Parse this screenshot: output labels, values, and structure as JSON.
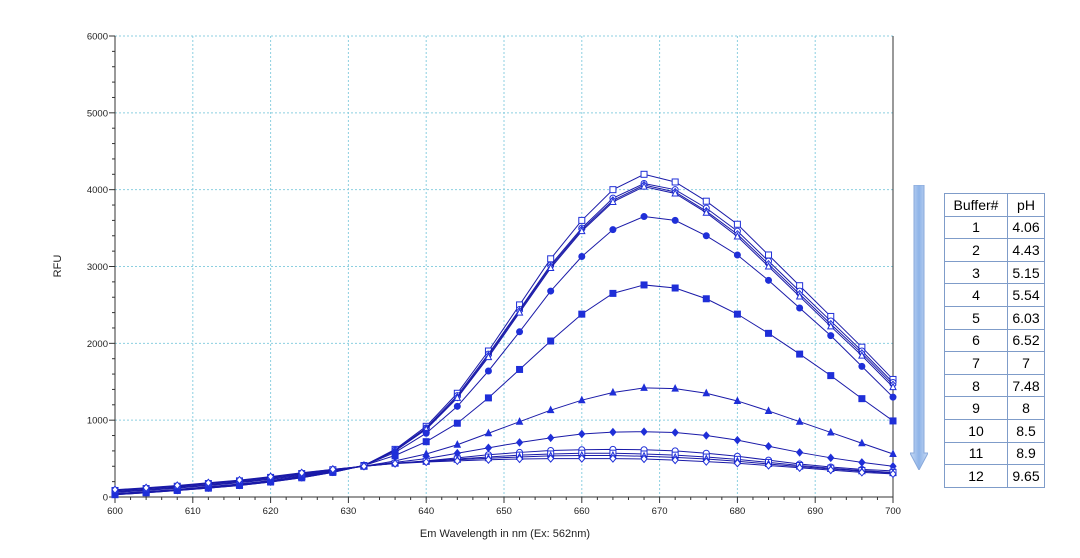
{
  "chart_data": {
    "type": "line",
    "xlabel": "Em Wavelength in nm  (Ex: 562nm)",
    "ylabel": "RFU",
    "xlim": [
      600,
      700
    ],
    "ylim": [
      0,
      6000
    ],
    "xticks": [
      600,
      610,
      620,
      630,
      640,
      650,
      660,
      670,
      680,
      690,
      700
    ],
    "yticks": [
      0,
      1000,
      2000,
      3000,
      4000,
      5000,
      6000
    ],
    "grid": true,
    "line_color": "#1a1aa8",
    "marker_color": "#1f2fd8",
    "grid_color": "#8ccfe0",
    "x": [
      600,
      604,
      608,
      612,
      616,
      620,
      624,
      628,
      632,
      636,
      640,
      644,
      648,
      652,
      656,
      660,
      664,
      668,
      672,
      676,
      680,
      684,
      688,
      692,
      696,
      700
    ],
    "series": [
      {
        "marker": "square-open",
        "values": [
          30,
          55,
          85,
          115,
          150,
          195,
          250,
          320,
          410,
          620,
          920,
          1350,
          1900,
          2500,
          3100,
          3600,
          4000,
          4200,
          4100,
          3850,
          3550,
          3150,
          2750,
          2350,
          1950,
          1530
        ]
      },
      {
        "marker": "circle-open",
        "values": [
          30,
          55,
          85,
          115,
          150,
          195,
          250,
          320,
          410,
          610,
          900,
          1320,
          1860,
          2440,
          3020,
          3500,
          3890,
          4080,
          4000,
          3760,
          3460,
          3070,
          2680,
          2290,
          1900,
          1490
        ]
      },
      {
        "marker": "diamond-open",
        "values": [
          35,
          60,
          90,
          120,
          155,
          200,
          255,
          325,
          410,
          600,
          890,
          1300,
          1840,
          2420,
          3000,
          3480,
          3860,
          4060,
          3970,
          3720,
          3420,
          3030,
          2640,
          2250,
          1870,
          1460
        ]
      },
      {
        "marker": "triangle-open",
        "values": [
          35,
          60,
          90,
          125,
          160,
          205,
          260,
          330,
          410,
          600,
          880,
          1290,
          1820,
          2400,
          2980,
          3460,
          3840,
          4040,
          3950,
          3700,
          3390,
          3000,
          2610,
          2220,
          1840,
          1430
        ]
      },
      {
        "marker": "circle-filled",
        "values": [
          40,
          65,
          95,
          130,
          165,
          210,
          265,
          335,
          410,
          580,
          830,
          1180,
          1640,
          2150,
          2680,
          3130,
          3480,
          3650,
          3600,
          3400,
          3150,
          2820,
          2460,
          2100,
          1700,
          1300
        ]
      },
      {
        "marker": "square-filled",
        "values": [
          45,
          70,
          100,
          135,
          170,
          215,
          270,
          335,
          410,
          540,
          720,
          960,
          1290,
          1660,
          2030,
          2380,
          2650,
          2760,
          2720,
          2580,
          2380,
          2130,
          1860,
          1580,
          1280,
          990
        ]
      },
      {
        "marker": "triangle-filled",
        "values": [
          60,
          85,
          115,
          150,
          185,
          230,
          280,
          340,
          400,
          470,
          560,
          680,
          830,
          980,
          1130,
          1260,
          1360,
          1420,
          1410,
          1350,
          1250,
          1120,
          980,
          840,
          700,
          560
        ]
      },
      {
        "marker": "diamond-filled",
        "values": [
          70,
          95,
          125,
          160,
          195,
          240,
          290,
          345,
          400,
          450,
          500,
          570,
          640,
          710,
          770,
          820,
          845,
          850,
          840,
          800,
          740,
          660,
          580,
          510,
          450,
          400
        ]
      },
      {
        "marker": "circle-open",
        "values": [
          80,
          105,
          135,
          170,
          205,
          250,
          300,
          350,
          400,
          440,
          470,
          510,
          550,
          580,
          605,
          615,
          620,
          615,
          600,
          570,
          530,
          480,
          430,
          390,
          360,
          340
        ]
      },
      {
        "marker": "square-open",
        "values": [
          85,
          110,
          140,
          175,
          210,
          255,
          305,
          355,
          400,
          440,
          465,
          495,
          520,
          545,
          560,
          570,
          570,
          560,
          545,
          520,
          490,
          450,
          410,
          375,
          345,
          320
        ]
      },
      {
        "marker": "triangle-open",
        "values": [
          90,
          115,
          145,
          180,
          215,
          260,
          310,
          360,
          400,
          440,
          460,
          485,
          505,
          520,
          535,
          540,
          540,
          530,
          515,
          495,
          465,
          430,
          395,
          365,
          335,
          310
        ]
      },
      {
        "marker": "diamond-open",
        "values": [
          95,
          120,
          150,
          185,
          220,
          265,
          315,
          360,
          400,
          435,
          455,
          470,
          485,
          495,
          500,
          500,
          500,
          495,
          480,
          460,
          440,
          410,
          380,
          350,
          320,
          300
        ]
      }
    ]
  },
  "table": {
    "headers": [
      "Buffer#",
      "pH"
    ],
    "rows": [
      [
        "1",
        "4.06"
      ],
      [
        "2",
        "4.43"
      ],
      [
        "3",
        "5.15"
      ],
      [
        "4",
        "5.54"
      ],
      [
        "5",
        "6.03"
      ],
      [
        "6",
        "6.52"
      ],
      [
        "7",
        "7"
      ],
      [
        "8",
        "7.48"
      ],
      [
        "9",
        "8"
      ],
      [
        "10",
        "8.5"
      ],
      [
        "11",
        "8.9"
      ],
      [
        "12",
        "9.65"
      ]
    ]
  },
  "arrow": {
    "direction": "down",
    "color": "#8fb4e8"
  }
}
